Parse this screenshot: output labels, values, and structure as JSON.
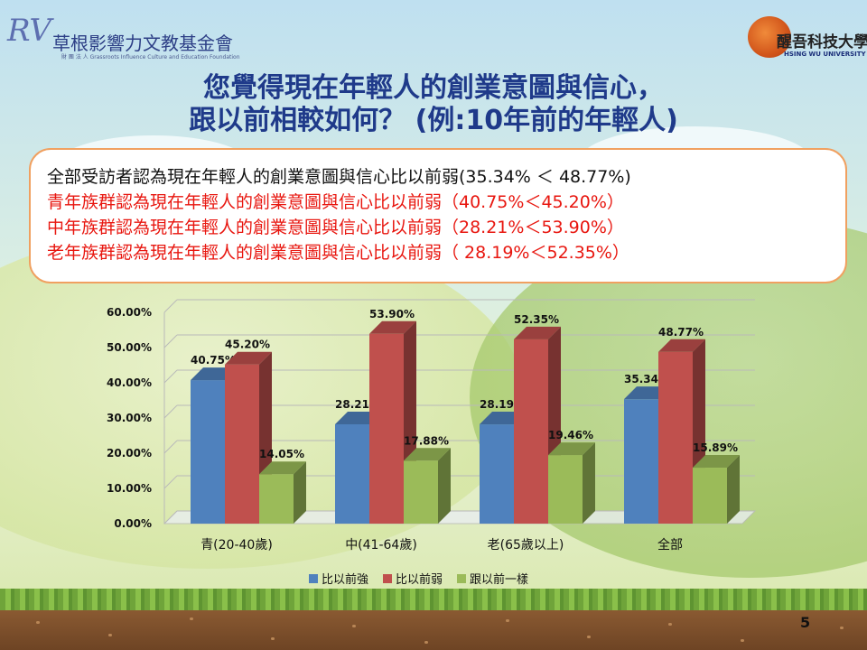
{
  "header": {
    "left_logo_mark": "RV",
    "left_logo_name": "草根影響力文教基金會",
    "left_logo_sub": "財 團 法 人  Grassroots Influence Culture and Education Foundation",
    "right_logo_name": "醒吾科技大學",
    "right_logo_sub": "HSING WU UNIVERSITY"
  },
  "title": {
    "line1": "您覺得現在年輕人的創業意圖與信心，",
    "line2": "跟以前相較如何？ (例:10年前的年輕人)"
  },
  "summary": {
    "line0": "全部受訪者認為現在年輕人的創業意圖與信心比以前弱(35.34%  ＜ 48.77%)",
    "line1": "青年族群認為現在年輕人的創業意圖與信心比以前弱（40.75%＜45.20%）",
    "line2": "中年族群認為現在年輕人的創業意圖與信心比以前弱（28.21%＜53.90%）",
    "line3": "老年族群認為現在年輕人的創業意圖與信心比以前弱（ 28.19%＜52.35%）"
  },
  "chart_data": {
    "type": "bar",
    "style": "3d-clustered-column",
    "categories": [
      "青(20-40歲)",
      "中(41-64歲)",
      "老(65歲以上)",
      "全部"
    ],
    "series": [
      {
        "name": "比以前強",
        "color": "#4f81bd",
        "values": [
          40.75,
          28.21,
          28.19,
          35.34
        ],
        "labels": [
          "40.75%",
          "28.21%",
          "28.19%",
          "35.34%"
        ]
      },
      {
        "name": "比以前弱",
        "color": "#c0504d",
        "values": [
          45.2,
          53.9,
          52.35,
          48.77
        ],
        "labels": [
          "45.20%",
          "53.90%",
          "52.35%",
          "48.77%"
        ]
      },
      {
        "name": "跟以前一樣",
        "color": "#9bbb59",
        "values": [
          14.05,
          17.88,
          19.46,
          15.89
        ],
        "labels": [
          "14.05%",
          "17.88%",
          "19.46%",
          "15.89%"
        ]
      }
    ],
    "yticks": [
      "0.00%",
      "10.00%",
      "20.00%",
      "30.00%",
      "40.00%",
      "50.00%",
      "60.00%"
    ],
    "ylim": [
      0,
      60
    ],
    "grid": true,
    "legend_position": "bottom"
  },
  "page_number": "5"
}
